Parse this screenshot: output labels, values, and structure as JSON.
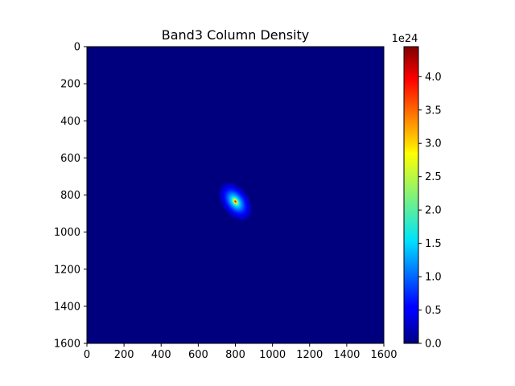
{
  "chart_data": {
    "type": "heatmap",
    "title": "Band3 Column Density",
    "xlabel": "",
    "ylabel": "",
    "colormap": "jet",
    "x_range": [
      0,
      1600
    ],
    "y_range": [
      0,
      1600
    ],
    "y_axis_inverted": true,
    "x_ticks": [
      "0",
      "200",
      "400",
      "600",
      "800",
      "1000",
      "1200",
      "1400",
      "1600"
    ],
    "y_ticks": [
      "0",
      "200",
      "400",
      "600",
      "800",
      "1000",
      "1200",
      "1400",
      "1600"
    ],
    "colorbar": {
      "range": [
        0.0,
        4.45
      ],
      "ticks": [
        "0.0",
        "0.5",
        "1.0",
        "1.5",
        "2.0",
        "2.5",
        "3.0",
        "3.5",
        "4.0"
      ],
      "offset_label": "1e24"
    },
    "source": {
      "center_x": 800,
      "center_y": 835,
      "peak": 4.45,
      "background": 0.0,
      "outer_extent_x": [
        710,
        915
      ],
      "outer_extent_y": [
        720,
        975
      ],
      "orientation": "tilted, elongated from upper-left to lower-right"
    },
    "grid": false
  }
}
